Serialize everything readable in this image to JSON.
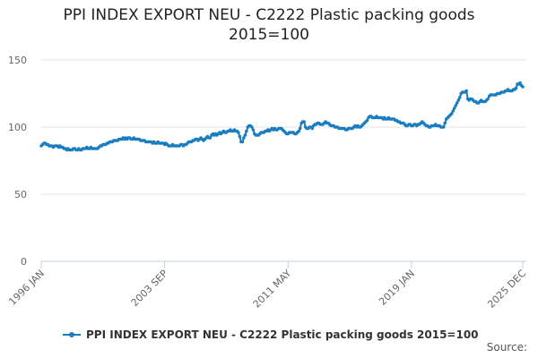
{
  "chart_data": {
    "type": "line",
    "title": "PPI INDEX EXPORT NEU - C2222 Plastic packing goods 2015=100",
    "source": "Source:",
    "categories": [
      "1996 JAN",
      null,
      null,
      null,
      null,
      null,
      null,
      null,
      null,
      null,
      null,
      null,
      null,
      null,
      null,
      null,
      null,
      null,
      null,
      null,
      null,
      null,
      null,
      null,
      null,
      null,
      null,
      null,
      null,
      null,
      null,
      null,
      null,
      null,
      null,
      null,
      null,
      null,
      null,
      null,
      null,
      null,
      null,
      null,
      null,
      null,
      null,
      null,
      null,
      null,
      null,
      null,
      null,
      null,
      null,
      null,
      null,
      null,
      null,
      null,
      null,
      null,
      null,
      null,
      null,
      null,
      null,
      null,
      null,
      null,
      null,
      null,
      null,
      null,
      null,
      null,
      null,
      null,
      null,
      null,
      null,
      null,
      null,
      null,
      null,
      null,
      null,
      null,
      null,
      null,
      null,
      null,
      "2003 SEP",
      null,
      null,
      null,
      null,
      null,
      null,
      null,
      null,
      null,
      null,
      null,
      null,
      null,
      null,
      null,
      null,
      null,
      null,
      null,
      null,
      null,
      null,
      null,
      null,
      null,
      null,
      null,
      null,
      null,
      null,
      null,
      null,
      null,
      null,
      null,
      null,
      null,
      null,
      null,
      null,
      null,
      null,
      null,
      null,
      null,
      null,
      null,
      null,
      null,
      null,
      null,
      null,
      null,
      null,
      null,
      null,
      null,
      null,
      null,
      null,
      null,
      null,
      null,
      null,
      null,
      null,
      null,
      null,
      null,
      null,
      null,
      null,
      null,
      null,
      null,
      null,
      null,
      null,
      null,
      null,
      null,
      null,
      null,
      null,
      null,
      null,
      null,
      null,
      null,
      null,
      null,
      "2011 MAY",
      null,
      null,
      null,
      null,
      null,
      null,
      null,
      null,
      null,
      null,
      null,
      null,
      null,
      null,
      null,
      null,
      null,
      null,
      null,
      null,
      null,
      null,
      null,
      null,
      null,
      null,
      null,
      null,
      null,
      null,
      null,
      null,
      null,
      null,
      null,
      null,
      null,
      null,
      null,
      null,
      null,
      null,
      null,
      null,
      null,
      null,
      null,
      null,
      null,
      null,
      null,
      null,
      null,
      null,
      null,
      null,
      null,
      null,
      null,
      null,
      null,
      null,
      null,
      null,
      null,
      null,
      null,
      null,
      null,
      null,
      null,
      null,
      null,
      null,
      null,
      null,
      null,
      null,
      null,
      null,
      null,
      null,
      null,
      null,
      null,
      null,
      null,
      null,
      null,
      null,
      null,
      "2019 JAN",
      null,
      null,
      null,
      null,
      null,
      null,
      null,
      null,
      null,
      null,
      null,
      null,
      null,
      null,
      null,
      null,
      null,
      null,
      null,
      null,
      null,
      null,
      null,
      null,
      null,
      null,
      null,
      null,
      null,
      null,
      null,
      null,
      null,
      null,
      null,
      null,
      null,
      null,
      null,
      null,
      null,
      null,
      null,
      null,
      null,
      null,
      null,
      null,
      null,
      null,
      null,
      null,
      null,
      null,
      null,
      null,
      null,
      null,
      null,
      null,
      null,
      null,
      null,
      null,
      null,
      null,
      null,
      null,
      null,
      null,
      null,
      null,
      null,
      null,
      null,
      null,
      null,
      null,
      null,
      null,
      null,
      null,
      "2025 DEC"
    ],
    "series": [
      {
        "name": "PPI INDEX EXPORT NEU - C2222 Plastic packing goods 2015=100",
        "color": "#1a7dc0",
        "values": [
          86,
          87,
          88,
          88,
          87,
          87,
          86,
          86,
          86,
          85,
          86,
          86,
          86,
          85,
          86,
          85,
          85,
          84,
          84,
          83,
          84,
          83,
          83,
          83,
          84,
          84,
          83,
          83,
          84,
          83,
          83,
          84,
          84,
          84,
          85,
          84,
          84,
          85,
          84,
          84,
          84,
          84,
          84,
          85,
          86,
          86,
          87,
          87,
          87,
          88,
          88,
          89,
          89,
          89,
          90,
          90,
          90,
          90,
          91,
          91,
          91,
          92,
          91,
          92,
          91,
          92,
          92,
          91,
          91,
          92,
          91,
          91,
          91,
          91,
          90,
          90,
          90,
          90,
          89,
          89,
          89,
          89,
          89,
          88,
          89,
          88,
          88,
          89,
          88,
          88,
          88,
          88,
          87,
          88,
          87,
          86,
          86,
          86,
          87,
          86,
          86,
          86,
          86,
          86,
          87,
          87,
          86,
          87,
          87,
          88,
          89,
          89,
          89,
          90,
          90,
          91,
          91,
          90,
          91,
          92,
          91,
          90,
          91,
          92,
          93,
          92,
          92,
          94,
          95,
          94,
          95,
          94,
          95,
          96,
          95,
          96,
          97,
          96,
          96,
          97,
          97,
          98,
          97,
          97,
          98,
          97,
          97,
          96,
          93,
          89,
          89,
          92,
          94,
          97,
          100,
          101,
          101,
          100,
          98,
          95,
          94,
          94,
          94,
          95,
          96,
          96,
          96,
          97,
          97,
          98,
          97,
          98,
          99,
          98,
          99,
          98,
          98,
          99,
          99,
          99,
          98,
          97,
          96,
          95,
          95,
          96,
          96,
          96,
          96,
          95,
          95,
          96,
          97,
          99,
          103,
          104,
          104,
          100,
          99,
          99,
          100,
          100,
          99,
          101,
          102,
          102,
          103,
          103,
          102,
          102,
          102,
          103,
          104,
          103,
          103,
          102,
          101,
          101,
          101,
          100,
          100,
          100,
          99,
          99,
          99,
          99,
          99,
          98,
          98,
          99,
          99,
          99,
          99,
          100,
          101,
          100,
          101,
          100,
          100,
          101,
          102,
          103,
          104,
          105,
          107,
          108,
          108,
          107,
          107,
          107,
          108,
          107,
          107,
          107,
          107,
          106,
          107,
          106,
          106,
          107,
          106,
          106,
          106,
          106,
          105,
          105,
          104,
          104,
          103,
          103,
          103,
          102,
          101,
          101,
          102,
          102,
          101,
          101,
          102,
          102,
          101,
          102,
          102,
          103,
          104,
          103,
          102,
          101,
          101,
          100,
          100,
          101,
          101,
          101,
          102,
          101,
          101,
          101,
          100,
          100,
          100,
          103,
          106,
          107,
          108,
          109,
          110,
          112,
          114,
          116,
          118,
          120,
          122,
          125,
          126,
          126,
          126,
          127,
          121,
          120,
          121,
          121,
          120,
          119,
          119,
          118,
          118,
          119,
          120,
          119,
          119,
          119,
          120,
          121,
          123,
          124,
          124,
          124,
          124,
          124,
          125,
          125,
          125,
          126,
          126,
          126,
          127,
          127,
          128,
          127,
          127,
          127,
          128,
          128,
          129,
          132,
          132,
          133,
          131,
          130
        ]
      }
    ],
    "ylim": [
      0,
      150
    ],
    "yticks": [
      0,
      50,
      100,
      150
    ],
    "grid": true
  }
}
